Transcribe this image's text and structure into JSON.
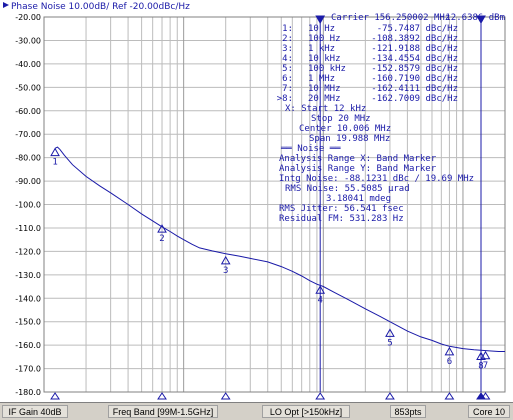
{
  "chart_data": {
    "type": "line",
    "title": "Phase Noise 10.00dB/ Ref -20.00dBc/Hz",
    "carrier": "Carrier 156.250002 MHz",
    "carrier_power": "12.6386 dBm",
    "x_scale": "log",
    "xlim_hz": [
      10000,
      20000000
    ],
    "ylim": [
      -180,
      -20
    ],
    "yticks": [
      "-20.00",
      "-30.00",
      "-40.00",
      "-50.00",
      "-60.00",
      "-70.00",
      "-80.00",
      "-90.00",
      "-100.0",
      "-110.0",
      "-120.0",
      "-130.0",
      "-140.0",
      "-150.0",
      "-160.0",
      "-170.0",
      "-180.0"
    ],
    "grid": true,
    "series": [
      {
        "x": [
          12000,
          12500,
          13000,
          14000,
          16000,
          20000,
          25000,
          30000,
          40000,
          50000,
          60000,
          70000,
          80000,
          90000,
          100000,
          115000,
          130000,
          160000,
          200000,
          250000,
          300000,
          400000,
          500000,
          600000,
          700000,
          800000,
          900000,
          1000000,
          1200000,
          1500000,
          2000000,
          2500000,
          3000000,
          4000000,
          5000000,
          6000000,
          7000000,
          8000000,
          10000000,
          12000000,
          15000000,
          18000000,
          20000000
        ],
        "y": [
          -76,
          -75.5,
          -76.5,
          -79,
          -83,
          -88,
          -92,
          -95,
          -100,
          -104,
          -107,
          -109.5,
          -111.5,
          -113.5,
          -115,
          -117,
          -118.5,
          -119.8,
          -121,
          -122,
          -123,
          -124.5,
          -126.5,
          -128.5,
          -130.5,
          -132.5,
          -134,
          -135,
          -137.5,
          -140.5,
          -144.5,
          -147.5,
          -150,
          -154,
          -156.5,
          -158,
          -159.5,
          -160.5,
          -161.5,
          -162,
          -162.4,
          -162.7,
          -162.7
        ]
      }
    ],
    "markers": [
      {
        "num": "1",
        "freq": "10 Hz",
        "value": "-75.7487 dBc/Hz",
        "x": 12000,
        "y": -75.75
      },
      {
        "num": "2",
        "freq": "100 Hz",
        "value": "-108.3892 dBc/Hz",
        "x": 70000,
        "y": -108.39
      },
      {
        "num": "3",
        "freq": "1 kHz",
        "value": "-121.9188 dBc/Hz",
        "x": 200000,
        "y": -121.92
      },
      {
        "num": "4",
        "freq": "10 kHz",
        "value": "-134.4554 dBc/Hz",
        "x": 950000,
        "y": -134.46
      },
      {
        "num": "5",
        "freq": "100 kHz",
        "value": "-152.8579 dBc/Hz",
        "x": 3000000,
        "y": -152.86
      },
      {
        "num": "6",
        "freq": "1 MHz",
        "value": "-160.7190 dBc/Hz",
        "x": 8000000,
        "y": -160.72
      },
      {
        "num": "7",
        "freq": "10 MHz",
        "value": "-162.4111 dBc/Hz",
        "x": 14500000,
        "y": -162.41
      },
      {
        "num": ">8",
        "freq": "20 MHz",
        "value": "-162.7009 dBc/Hz",
        "x": 20000000,
        "y": -162.7
      }
    ],
    "span_info": [
      "X: Start 12 kHz",
      "Stop 20 MHz",
      "Center 10.006 MHz",
      "Span 19.988 MHz"
    ],
    "noise_info": [
      "══ Noise ══",
      "Analysis Range X: Band Marker",
      "Analysis Range Y: Band Marker",
      "Intg Noise: -88.1231 dBc / 19.69 MHz",
      "RMS Noise: 55.5085 µrad",
      "3.18041 mdeg",
      "RMS Jitter: 56.541 fsec",
      "Residual FM: 531.283 Hz"
    ],
    "colors": {
      "trace": "#1a1aa8",
      "grid": "#bcbcbc",
      "text": "#1a1aa8",
      "background": "#ffffff"
    }
  },
  "statusbar": {
    "if_gain": "IF Gain 40dB",
    "freq_band": "Freq Band [99M-1.5GHz]",
    "lo_opt": "LO Opt [>150kHz]",
    "points": "853pts",
    "core": "Core 10"
  }
}
